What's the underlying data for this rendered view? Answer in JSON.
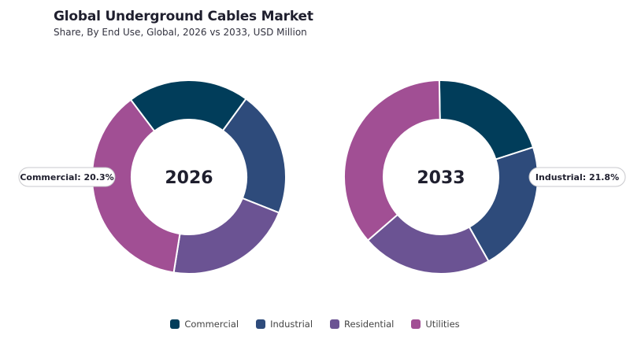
{
  "title": "Global Underground Cables Market",
  "subtitle": "Share, By End Use, Global, 2026 vs 2033, USD Million",
  "chart_data": [
    {
      "type": "pie",
      "label": "2026",
      "categories": [
        "Commercial",
        "Industrial",
        "Residential",
        "Utilities"
      ],
      "values": [
        20.3,
        21.0,
        21.5,
        37.2
      ],
      "colors": [
        "#013d5a",
        "#2e4b7b",
        "#6b5393",
        "#a14f94"
      ],
      "callout": {
        "category": "Commercial",
        "text": "Commercial: 20.3%"
      }
    },
    {
      "type": "pie",
      "label": "2033",
      "categories": [
        "Commercial",
        "Industrial",
        "Residential",
        "Utilities"
      ],
      "values": [
        20.3,
        21.8,
        21.8,
        36.1
      ],
      "colors": [
        "#013d5a",
        "#2e4b7b",
        "#6b5393",
        "#a14f94"
      ],
      "callout": {
        "category": "Industrial",
        "text": "Industrial: 21.8%"
      }
    }
  ],
  "legend": [
    {
      "label": "Commercial",
      "color": "#013d5a"
    },
    {
      "label": "Industrial",
      "color": "#2e4b7b"
    },
    {
      "label": "Residential",
      "color": "#6b5393"
    },
    {
      "label": "Utilities",
      "color": "#a14f94"
    }
  ]
}
